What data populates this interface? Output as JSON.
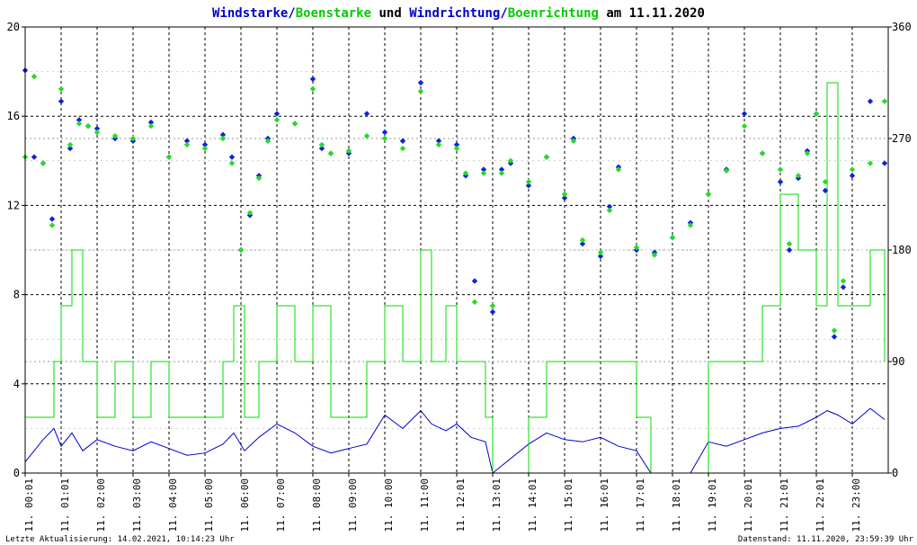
{
  "title": {
    "part1": "Windstarke",
    "sep1": "/",
    "part2": "Boenstarke",
    "mid": " und ",
    "part3": "Windrichtung",
    "sep2": "/",
    "part4": "Boenrichtung",
    "tail": " am 11.11.2020"
  },
  "footer": {
    "left": "Letzte Aktualisierung: 14.02.2021, 10:14:23 Uhr",
    "right": "Datenstand: 11.11.2020, 23:59:39 Uhr"
  },
  "colors": {
    "wind": "#0000cc",
    "gust": "#00dd00",
    "direction": "#1020e0",
    "gust_direction": "#22dd22",
    "grid": "#000000",
    "text": "#000000"
  },
  "chart_data": {
    "type": "line",
    "title": "Windstarke/Boenstarke und Windrichtung/Boenrichtung am 11.11.2020",
    "xlabel": "",
    "ylabel": "",
    "xlim": [
      0,
      24
    ],
    "ylim": [
      0,
      20
    ],
    "y2lim": [
      0,
      360
    ],
    "yticks": [
      0,
      4,
      8,
      12,
      16,
      20
    ],
    "y2ticks": [
      0,
      90,
      180,
      270,
      360
    ],
    "xticks": [
      "11. 00:01",
      "11. 01:01",
      "11. 02:00",
      "11. 03:00",
      "11. 04:00",
      "11. 05:00",
      "11. 06:00",
      "11. 07:00",
      "11. 08:00",
      "11. 09:00",
      "11. 10:00",
      "11. 11:00",
      "11. 12:01",
      "11. 13:01",
      "11. 14:01",
      "11. 15:01",
      "11. 16:01",
      "11. 17:01",
      "11. 18:01",
      "11. 19:01",
      "11. 20:01",
      "11. 21:01",
      "11. 22:01",
      "11. 23:00"
    ],
    "grid": true,
    "series": [
      {
        "name": "Windstarke",
        "axis": "left",
        "style": "line",
        "x": [
          0,
          0.5,
          0.8,
          1.0,
          1.3,
          1.6,
          2.0,
          2.5,
          3.0,
          3.5,
          4.0,
          4.5,
          5.0,
          5.5,
          5.8,
          6.1,
          6.5,
          7.0,
          7.5,
          8.0,
          8.5,
          9.0,
          9.5,
          10.0,
          10.5,
          11.0,
          11.3,
          11.7,
          12.0,
          12.4,
          12.8,
          13.0,
          14.0,
          14.5,
          15.0,
          15.5,
          16.0,
          16.5,
          17.0,
          17.4,
          18.5,
          19.0,
          19.5,
          20.0,
          20.5,
          21.0,
          21.5,
          22.0,
          22.3,
          22.6,
          23.0,
          23.5,
          23.9
        ],
        "y": [
          0.5,
          1.5,
          2.0,
          1.2,
          1.8,
          1.0,
          1.5,
          1.2,
          1.0,
          1.4,
          1.1,
          0.8,
          0.9,
          1.3,
          1.8,
          1.0,
          1.6,
          2.2,
          1.8,
          1.2,
          0.9,
          1.1,
          1.3,
          2.6,
          2.0,
          2.8,
          2.2,
          1.9,
          2.2,
          1.6,
          1.4,
          0.0,
          1.3,
          1.8,
          1.5,
          1.4,
          1.6,
          1.2,
          1.0,
          0.0,
          0.0,
          1.4,
          1.2,
          1.5,
          1.8,
          2.0,
          2.1,
          2.5,
          2.8,
          2.6,
          2.2,
          2.9,
          2.4
        ]
      },
      {
        "name": "Boenstarke",
        "axis": "left",
        "style": "step",
        "x": [
          0,
          0.5,
          0.8,
          1.0,
          1.3,
          1.6,
          2.0,
          2.5,
          3.0,
          3.5,
          4.0,
          4.5,
          5.0,
          5.5,
          5.8,
          6.1,
          6.5,
          7.0,
          7.5,
          8.0,
          8.5,
          9.0,
          9.5,
          10.0,
          10.5,
          11.0,
          11.3,
          11.7,
          12.0,
          12.4,
          12.8,
          13.0,
          14.0,
          14.5,
          15.0,
          15.5,
          16.0,
          16.5,
          17.0,
          17.4,
          18.5,
          19.0,
          19.5,
          20.0,
          20.5,
          21.0,
          21.5,
          22.0,
          22.3,
          22.6,
          23.0,
          23.5,
          23.9
        ],
        "y": [
          2.5,
          2.5,
          5.0,
          7.5,
          10.0,
          5.0,
          2.5,
          5.0,
          2.5,
          5.0,
          2.5,
          2.5,
          2.5,
          5.0,
          7.5,
          2.5,
          5.0,
          7.5,
          5.0,
          7.5,
          2.5,
          2.5,
          5.0,
          7.5,
          5.0,
          10.0,
          5.0,
          7.5,
          5.0,
          5.0,
          2.5,
          0.0,
          2.5,
          5.0,
          5.0,
          5.0,
          5.0,
          5.0,
          2.5,
          0.0,
          0.0,
          5.0,
          5.0,
          5.0,
          7.5,
          12.5,
          10.0,
          7.5,
          17.5,
          7.5,
          7.5,
          10.0,
          5.0
        ]
      },
      {
        "name": "Windrichtung",
        "axis": "right",
        "style": "points",
        "x": [
          0,
          0.25,
          0.5,
          0.75,
          1.0,
          1.25,
          1.5,
          1.75,
          2.0,
          2.5,
          3.0,
          3.5,
          4.0,
          4.5,
          5.0,
          5.5,
          5.75,
          6.0,
          6.25,
          6.5,
          6.75,
          7.0,
          7.5,
          8.0,
          8.25,
          8.5,
          9.0,
          9.5,
          10.0,
          10.5,
          11.0,
          11.5,
          12.0,
          12.25,
          12.5,
          12.75,
          13.0,
          13.25,
          13.5,
          14.0,
          14.5,
          15.0,
          15.25,
          15.5,
          16.0,
          16.25,
          16.5,
          17.0,
          17.5,
          18.0,
          18.5,
          19.0,
          19.5,
          20.0,
          20.5,
          21.0,
          21.25,
          21.5,
          21.75,
          22.0,
          22.25,
          22.5,
          22.75,
          23.0,
          23.5,
          23.9
        ],
        "y": [
          325,
          255,
          250,
          205,
          300,
          262,
          285,
          280,
          278,
          270,
          268,
          283,
          255,
          268,
          265,
          273,
          255,
          180,
          208,
          240,
          270,
          290,
          282,
          318,
          262,
          258,
          258,
          290,
          275,
          268,
          315,
          268,
          265,
          240,
          155,
          245,
          130,
          245,
          250,
          232,
          255,
          222,
          270,
          185,
          175,
          215,
          247,
          180,
          178,
          190,
          202,
          225,
          245,
          290,
          258,
          235,
          180,
          238,
          260,
          290,
          228,
          110,
          150,
          240,
          300,
          250
        ]
      },
      {
        "name": "Boenrichtung",
        "axis": "right",
        "style": "points",
        "x": [
          0,
          0.25,
          0.5,
          0.75,
          1.0,
          1.25,
          1.5,
          1.75,
          2.0,
          2.5,
          3.0,
          3.5,
          4.0,
          4.5,
          5.0,
          5.5,
          5.75,
          6.0,
          6.25,
          6.5,
          6.75,
          7.0,
          7.5,
          8.0,
          8.25,
          8.5,
          9.0,
          9.5,
          10.0,
          10.5,
          11.0,
          11.5,
          12.0,
          12.25,
          12.5,
          12.75,
          13.0,
          13.25,
          13.5,
          14.0,
          14.5,
          15.0,
          15.25,
          15.5,
          16.0,
          16.25,
          16.5,
          17.0,
          17.5,
          18.0,
          18.5,
          19.0,
          19.5,
          20.0,
          20.5,
          21.0,
          21.25,
          21.5,
          21.75,
          22.0,
          22.25,
          22.5,
          22.75,
          23.0,
          23.5,
          23.9
        ],
        "y": [
          255,
          320,
          250,
          200,
          310,
          265,
          282,
          280,
          275,
          272,
          270,
          280,
          255,
          265,
          262,
          270,
          250,
          180,
          210,
          238,
          268,
          285,
          282,
          310,
          265,
          258,
          260,
          272,
          270,
          262,
          308,
          265,
          262,
          242,
          138,
          242,
          135,
          242,
          252,
          235,
          255,
          225,
          268,
          188,
          178,
          212,
          245,
          182,
          176,
          190,
          200,
          225,
          244,
          280,
          258,
          245,
          185,
          240,
          258,
          290,
          235,
          115,
          155,
          245,
          250,
          300
        ]
      }
    ]
  }
}
